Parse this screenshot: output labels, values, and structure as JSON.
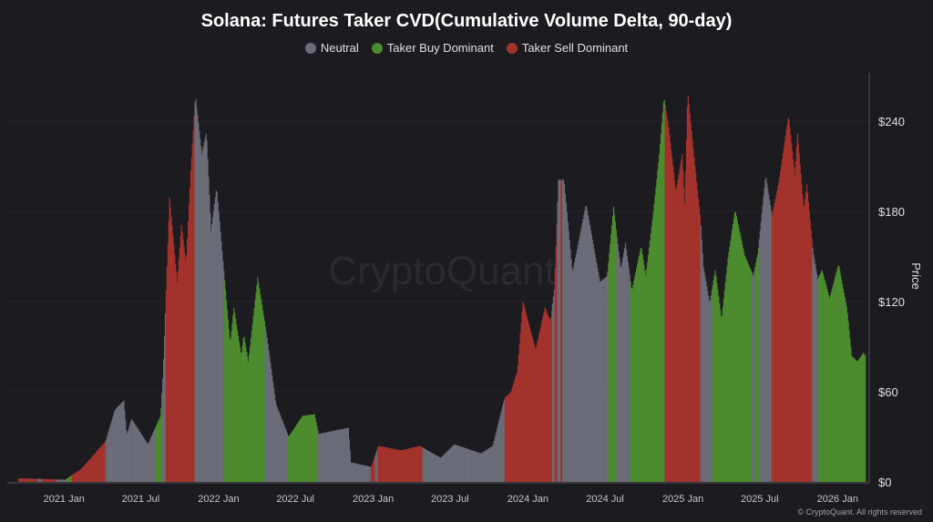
{
  "chart_data": {
    "type": "bar",
    "title": "Solana: Futures Taker CVD(Cumulative Volume Delta, 90-day)",
    "ylabel": "Price",
    "ylim": [
      0,
      270
    ],
    "yticks": [
      0,
      60,
      120,
      180,
      240
    ],
    "ytick_labels": [
      "$0",
      "$60",
      "$120",
      "$180",
      "$240"
    ],
    "xlim": [
      "2020-09-15",
      "2026-03-08"
    ],
    "xticks": [
      "2021-01-01",
      "2021-07-01",
      "2022-01-01",
      "2022-07-01",
      "2023-01-01",
      "2023-07-01",
      "2024-01-01",
      "2024-07-01",
      "2025-01-01",
      "2025-07-01",
      "2026-01-01"
    ],
    "xtick_labels": [
      "2021 Jan",
      "2021 Jul",
      "2022 Jan",
      "2022 Jul",
      "2023 Jan",
      "2023 Jul",
      "2024 Jan",
      "2024 Jul",
      "2025 Jan",
      "2025 Jul",
      "2026 Jan"
    ],
    "grid": true,
    "legend_position": "top",
    "legend": [
      {
        "key": "neutral",
        "label": "Neutral",
        "color": "#6b6c78"
      },
      {
        "key": "buy",
        "label": "Taker Buy Dominant",
        "color": "#4c8c2f"
      },
      {
        "key": "sell",
        "label": "Taker Sell Dominant",
        "color": "#a4332c"
      }
    ],
    "price": [
      [
        "2020-09-17",
        2.4
      ],
      [
        "2021-01-03",
        1.5
      ],
      [
        "2021-02-09",
        8.5
      ],
      [
        "2021-04-08",
        27
      ],
      [
        "2021-04-30",
        48
      ],
      [
        "2021-05-21",
        54
      ],
      [
        "2021-05-28",
        31
      ],
      [
        "2021-06-08",
        42
      ],
      [
        "2021-07-17",
        25
      ],
      [
        "2021-08-16",
        44
      ],
      [
        "2021-08-22",
        74
      ],
      [
        "2021-09-06",
        189
      ],
      [
        "2021-09-24",
        133
      ],
      [
        "2021-10-04",
        171
      ],
      [
        "2021-10-15",
        145
      ],
      [
        "2021-10-26",
        207
      ],
      [
        "2021-11-06",
        257
      ],
      [
        "2021-11-21",
        218
      ],
      [
        "2021-12-02",
        233
      ],
      [
        "2021-12-13",
        167
      ],
      [
        "2021-12-26",
        196
      ],
      [
        "2022-01-10",
        147
      ],
      [
        "2022-01-27",
        92
      ],
      [
        "2022-02-05",
        116
      ],
      [
        "2022-02-22",
        84
      ],
      [
        "2022-02-28",
        98
      ],
      [
        "2022-03-11",
        80
      ],
      [
        "2022-04-02",
        136
      ],
      [
        "2022-04-23",
        98
      ],
      [
        "2022-05-15",
        52
      ],
      [
        "2022-06-14",
        30
      ],
      [
        "2022-07-17",
        44
      ],
      [
        "2022-08-14",
        45
      ],
      [
        "2022-08-24",
        32
      ],
      [
        "2022-11-02",
        36
      ],
      [
        "2022-11-08",
        13
      ],
      [
        "2022-12-26",
        10
      ],
      [
        "2023-01-12",
        24
      ],
      [
        "2023-03-07",
        21
      ],
      [
        "2023-04-19",
        24
      ],
      [
        "2023-06-08",
        16
      ],
      [
        "2023-07-10",
        25
      ],
      [
        "2023-09-11",
        19
      ],
      [
        "2023-10-09",
        24
      ],
      [
        "2023-11-06",
        56
      ],
      [
        "2023-11-21",
        60
      ],
      [
        "2023-12-06",
        74
      ],
      [
        "2023-12-19",
        120
      ],
      [
        "2024-01-18",
        88
      ],
      [
        "2024-02-09",
        116
      ],
      [
        "2024-02-22",
        107
      ],
      [
        "2024-03-02",
        128
      ],
      [
        "2024-03-12",
        201
      ],
      [
        "2024-03-25",
        201
      ],
      [
        "2024-04-14",
        139
      ],
      [
        "2024-05-16",
        185
      ],
      [
        "2024-06-18",
        133
      ],
      [
        "2024-07-05",
        137
      ],
      [
        "2024-07-20",
        183
      ],
      [
        "2024-08-06",
        141
      ],
      [
        "2024-08-17",
        159
      ],
      [
        "2024-09-01",
        127
      ],
      [
        "2024-09-23",
        157
      ],
      [
        "2024-10-04",
        137
      ],
      [
        "2024-10-21",
        177
      ],
      [
        "2024-11-05",
        218
      ],
      [
        "2024-11-16",
        256
      ],
      [
        "2024-11-27",
        236
      ],
      [
        "2024-12-14",
        193
      ],
      [
        "2024-12-29",
        218
      ],
      [
        "2025-01-04",
        185
      ],
      [
        "2025-01-11",
        260
      ],
      [
        "2025-01-26",
        216
      ],
      [
        "2025-02-10",
        175
      ],
      [
        "2025-02-17",
        143
      ],
      [
        "2025-03-04",
        119
      ],
      [
        "2025-03-17",
        141
      ],
      [
        "2025-04-01",
        108
      ],
      [
        "2025-04-16",
        149
      ],
      [
        "2025-05-03",
        181
      ],
      [
        "2025-05-25",
        151
      ],
      [
        "2025-06-15",
        137
      ],
      [
        "2025-06-26",
        153
      ],
      [
        "2025-07-14",
        204
      ],
      [
        "2025-07-29",
        177
      ],
      [
        "2025-08-15",
        201
      ],
      [
        "2025-09-06",
        244
      ],
      [
        "2025-09-21",
        204
      ],
      [
        "2025-09-27",
        232
      ],
      [
        "2025-10-12",
        181
      ],
      [
        "2025-10-19",
        198
      ],
      [
        "2025-11-03",
        153
      ],
      [
        "2025-11-14",
        135
      ],
      [
        "2025-11-24",
        141
      ],
      [
        "2025-12-12",
        122
      ],
      [
        "2026-01-02",
        145
      ],
      [
        "2026-01-22",
        115
      ],
      [
        "2026-02-02",
        84
      ],
      [
        "2026-02-15",
        80
      ],
      [
        "2026-03-02",
        86
      ],
      [
        "2026-03-06",
        84
      ]
    ],
    "regimes": [
      [
        "2020-09-15",
        "sell"
      ],
      [
        "2020-10-30",
        "neutral"
      ],
      [
        "2020-11-10",
        "sell"
      ],
      [
        "2020-12-13",
        "neutral"
      ],
      [
        "2021-01-07",
        "buy"
      ],
      [
        "2021-01-18",
        "sell"
      ],
      [
        "2021-04-08",
        "neutral"
      ],
      [
        "2021-08-05",
        "buy"
      ],
      [
        "2021-08-20",
        "neutral"
      ],
      [
        "2021-08-29",
        "sell"
      ],
      [
        "2021-11-04",
        "neutral"
      ],
      [
        "2022-01-14",
        "buy"
      ],
      [
        "2022-04-19",
        "neutral"
      ],
      [
        "2022-06-12",
        "buy"
      ],
      [
        "2022-08-22",
        "neutral"
      ],
      [
        "2022-12-26",
        "sell"
      ],
      [
        "2023-01-05",
        "neutral"
      ],
      [
        "2023-01-10",
        "sell"
      ],
      [
        "2023-04-26",
        "neutral"
      ],
      [
        "2023-11-06",
        "sell"
      ],
      [
        "2024-02-26",
        "neutral"
      ],
      [
        "2024-03-04",
        "sell"
      ],
      [
        "2024-03-10",
        "neutral"
      ],
      [
        "2024-03-17",
        "sell"
      ],
      [
        "2024-03-21",
        "neutral"
      ],
      [
        "2024-07-07",
        "buy"
      ],
      [
        "2024-07-27",
        "neutral"
      ],
      [
        "2024-08-28",
        "buy"
      ],
      [
        "2024-11-18",
        "sell"
      ],
      [
        "2025-02-10",
        "neutral"
      ],
      [
        "2025-03-10",
        "buy"
      ],
      [
        "2025-06-11",
        "neutral"
      ],
      [
        "2025-06-19",
        "buy"
      ],
      [
        "2025-06-28",
        "neutral"
      ],
      [
        "2025-07-29",
        "sell"
      ],
      [
        "2025-11-01",
        "neutral"
      ],
      [
        "2025-11-16",
        "buy"
      ]
    ],
    "end_date": "2026-03-06"
  },
  "watermark": "CryptoQuant",
  "copyright": "© CryptoQuant. All rights reserved"
}
